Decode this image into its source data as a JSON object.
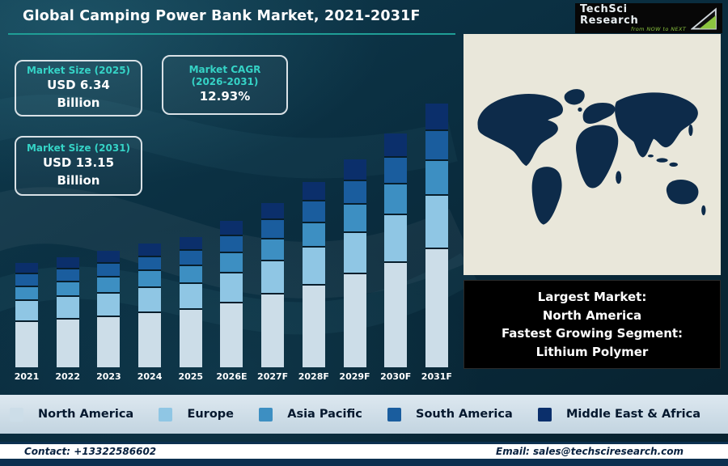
{
  "header": {
    "title": "Global Camping Power Bank Market, 2021-2031F",
    "logo": {
      "brand": "TechSci Research",
      "tagline": "from NOW to NEXT"
    }
  },
  "stats": [
    {
      "label": "Market Size (2025)",
      "value": "USD 6.34",
      "unit": "Billion"
    },
    {
      "label": "Market CAGR (2026-2031)",
      "value": "12.93%",
      "unit": ""
    },
    {
      "label": "Market Size (2031)",
      "value": "USD 13.15",
      "unit": "Billion"
    }
  ],
  "callout": {
    "line1": "Largest Market:",
    "line2": "North America",
    "line3": "Fastest Growing Segment:",
    "line4": "Lithium Polymer"
  },
  "footer": {
    "contact": "Contact: +13322586602",
    "email": "Email: sales@techsciresearch.com"
  },
  "colors": {
    "accent_teal": "#1f9e96",
    "logo_green": "#8bc53f",
    "map_land": "#0d2b4a",
    "map_ocean": "#e9e7da"
  },
  "chart_data": {
    "type": "bar",
    "stacked": true,
    "title": "Global Camping Power Bank Market, 2021-2031F",
    "unit": "USD Billion",
    "categories": [
      "2021",
      "2022",
      "2023",
      "2024",
      "2025",
      "2026E",
      "2027F",
      "2028F",
      "2029F",
      "2030F",
      "2031F"
    ],
    "series": [
      {
        "name": "North America",
        "color": "#ccdde8",
        "values": [
          2.3,
          2.44,
          2.58,
          2.76,
          2.92,
          3.29,
          3.72,
          4.2,
          4.74,
          5.35,
          6.05
        ]
      },
      {
        "name": "Europe",
        "color": "#8fc6e4",
        "values": [
          1.0,
          1.06,
          1.12,
          1.2,
          1.27,
          1.43,
          1.62,
          1.83,
          2.06,
          2.33,
          2.63
        ]
      },
      {
        "name": "Asia Pacific",
        "color": "#3d8fc2",
        "values": [
          0.65,
          0.69,
          0.73,
          0.78,
          0.82,
          0.93,
          1.05,
          1.19,
          1.34,
          1.51,
          1.71
        ]
      },
      {
        "name": "South America",
        "color": "#1a5d9e",
        "values": [
          0.55,
          0.58,
          0.62,
          0.66,
          0.7,
          0.79,
          0.89,
          1.0,
          1.13,
          1.28,
          1.45
        ]
      },
      {
        "name": "Middle East & Africa",
        "color": "#0b2f6b",
        "values": [
          0.5,
          0.53,
          0.56,
          0.6,
          0.63,
          0.72,
          0.81,
          0.91,
          1.03,
          1.16,
          1.32
        ]
      }
    ],
    "ylim": [
      0,
      14
    ],
    "grid": false,
    "legend_position": "bottom"
  }
}
